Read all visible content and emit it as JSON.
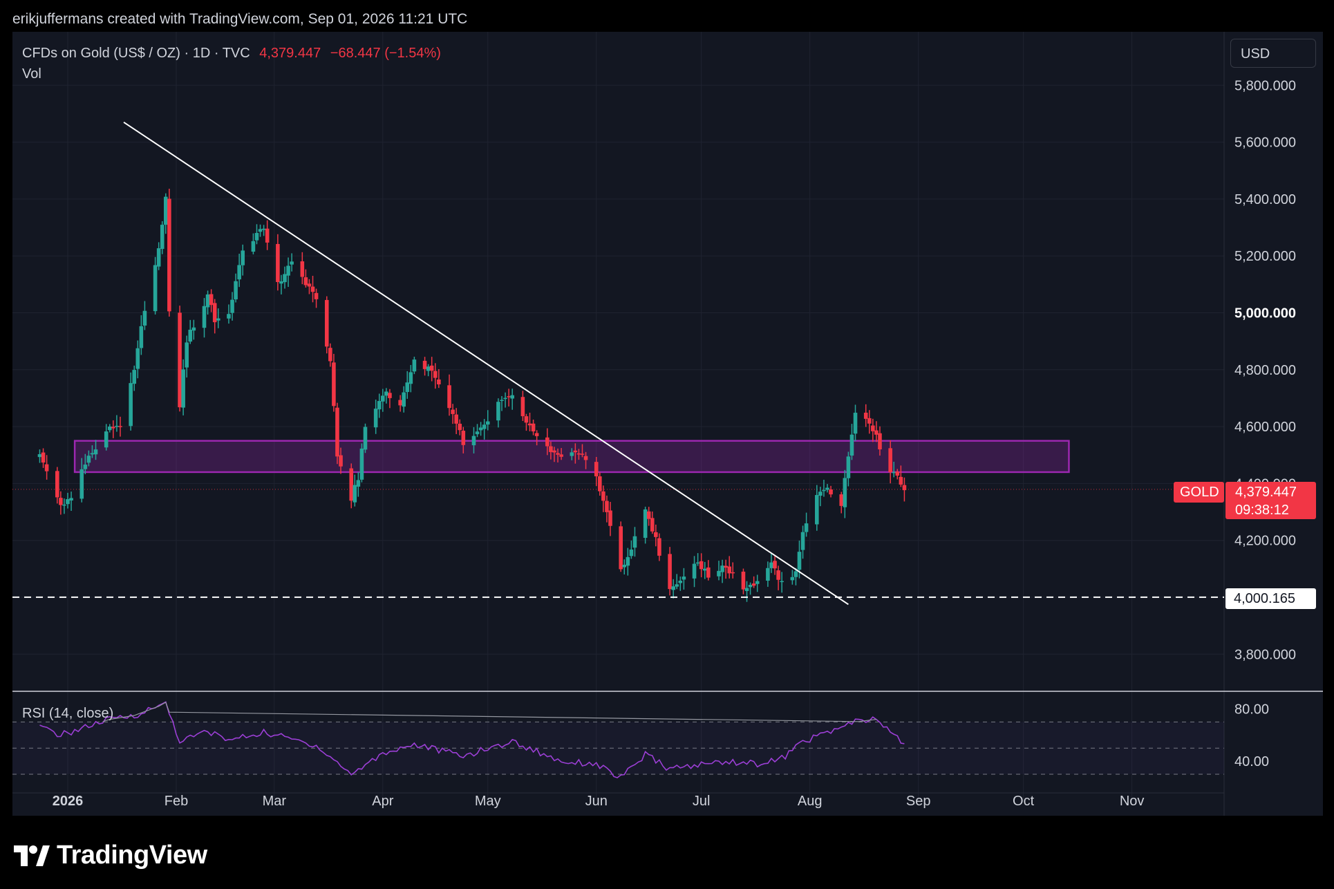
{
  "header": {
    "credit": "erikjuffermans created with TradingView.com, Sep 01, 2026 11:21 UTC"
  },
  "legend": {
    "symbol": "CFDs on Gold (US$ / OZ) · 1D · TVC",
    "price": "4,379.447",
    "change": "−68.447 (−1.54%)",
    "volume": "Vol"
  },
  "currency_button": "USD",
  "rsi": {
    "label": "RSI (14, close)"
  },
  "price_tags": {
    "symbol": "GOLD",
    "last": "4,379.447",
    "countdown": "09:38:12",
    "support": "4,000.165"
  },
  "footer": {
    "brand": "TradingView"
  },
  "colors": {
    "up": "#26a69a",
    "down": "#f23645",
    "zone": "#9c27b0",
    "rsi": "#9c3fd6",
    "trendline": "#ffffff"
  },
  "chart_data": [
    {
      "type": "candlestick",
      "name": "CFDs on Gold (US$ / OZ) · 1D · TVC",
      "x_tick_labels": [
        "2026",
        "Feb",
        "Mar",
        "Apr",
        "May",
        "Jun",
        "Jul",
        "Aug",
        "Sep",
        "Oct",
        "Nov"
      ],
      "y_tick_labels": [
        "3,800.000",
        "4,200.000",
        "4,400.000",
        "4,600.000",
        "4,800.000",
        "5,000.000",
        "5,200.000",
        "5,400.000",
        "5,600.000",
        "5,800.000"
      ],
      "ylim": [
        3700,
        5930
      ],
      "last_price": 4379.447,
      "anchors": [
        {
          "date": "2025-12-24",
          "close": 4500
        },
        {
          "date": "2025-12-30",
          "close": 4330
        },
        {
          "date": "2026-01-02",
          "close": 4340
        },
        {
          "date": "2026-01-06",
          "close": 4470
        },
        {
          "date": "2026-01-09",
          "close": 4520
        },
        {
          "date": "2026-01-13",
          "close": 4590
        },
        {
          "date": "2026-01-16",
          "close": 4610
        },
        {
          "date": "2026-01-20",
          "close": 4810
        },
        {
          "date": "2026-01-23",
          "close": 5010
        },
        {
          "date": "2026-01-27",
          "close": 5220
        },
        {
          "date": "2026-01-29",
          "close": 5410
        },
        {
          "date": "2026-01-30",
          "close": 5000
        },
        {
          "date": "2026-02-02",
          "close": 4680
        },
        {
          "date": "2026-02-04",
          "close": 4900
        },
        {
          "date": "2026-02-06",
          "close": 4960
        },
        {
          "date": "2026-02-10",
          "close": 5060
        },
        {
          "date": "2026-02-12",
          "close": 4970
        },
        {
          "date": "2026-02-16",
          "close": 5000
        },
        {
          "date": "2026-02-20",
          "close": 5230
        },
        {
          "date": "2026-02-26",
          "close": 5300
        },
        {
          "date": "2026-03-02",
          "close": 5100
        },
        {
          "date": "2026-03-06",
          "close": 5170
        },
        {
          "date": "2026-03-10",
          "close": 5110
        },
        {
          "date": "2026-03-13",
          "close": 5050
        },
        {
          "date": "2026-03-17",
          "close": 4820
        },
        {
          "date": "2026-03-19",
          "close": 4500
        },
        {
          "date": "2026-03-23",
          "close": 4350
        },
        {
          "date": "2026-03-25",
          "close": 4420
        },
        {
          "date": "2026-03-27",
          "close": 4600
        },
        {
          "date": "2026-04-01",
          "close": 4720
        },
        {
          "date": "2026-04-06",
          "close": 4680
        },
        {
          "date": "2026-04-10",
          "close": 4830
        },
        {
          "date": "2026-04-15",
          "close": 4800
        },
        {
          "date": "2026-04-21",
          "close": 4650
        },
        {
          "date": "2026-04-24",
          "close": 4540
        },
        {
          "date": "2026-04-28",
          "close": 4570
        },
        {
          "date": "2026-05-04",
          "close": 4680
        },
        {
          "date": "2026-05-08",
          "close": 4700
        },
        {
          "date": "2026-05-13",
          "close": 4600
        },
        {
          "date": "2026-05-18",
          "close": 4520
        },
        {
          "date": "2026-05-22",
          "close": 4500
        },
        {
          "date": "2026-05-27",
          "close": 4510
        },
        {
          "date": "2026-06-01",
          "close": 4420
        },
        {
          "date": "2026-06-04",
          "close": 4300
        },
        {
          "date": "2026-06-08",
          "close": 4100
        },
        {
          "date": "2026-06-11",
          "close": 4180
        },
        {
          "date": "2026-06-15",
          "close": 4320
        },
        {
          "date": "2026-06-18",
          "close": 4200
        },
        {
          "date": "2026-06-22",
          "close": 4020
        },
        {
          "date": "2026-06-26",
          "close": 4060
        },
        {
          "date": "2026-06-30",
          "close": 4120
        },
        {
          "date": "2026-07-03",
          "close": 4080
        },
        {
          "date": "2026-07-08",
          "close": 4110
        },
        {
          "date": "2026-07-13",
          "close": 4030
        },
        {
          "date": "2026-07-17",
          "close": 4050
        },
        {
          "date": "2026-07-21",
          "close": 4120
        },
        {
          "date": "2026-07-24",
          "close": 4050
        },
        {
          "date": "2026-07-28",
          "close": 4080
        },
        {
          "date": "2026-07-30",
          "close": 4230
        },
        {
          "date": "2026-08-03",
          "close": 4350
        },
        {
          "date": "2026-08-06",
          "close": 4380
        },
        {
          "date": "2026-08-10",
          "close": 4330
        },
        {
          "date": "2026-08-12",
          "close": 4500
        },
        {
          "date": "2026-08-14",
          "close": 4640
        },
        {
          "date": "2026-08-18",
          "close": 4620
        },
        {
          "date": "2026-08-20",
          "close": 4560
        },
        {
          "date": "2026-08-24",
          "close": 4440
        },
        {
          "date": "2026-08-26",
          "close": 4420
        },
        {
          "date": "2026-08-28",
          "close": 4379.447
        }
      ],
      "annotations": [
        {
          "kind": "trendline",
          "from": {
            "date": "2026-01-17",
            "price": 5670
          },
          "to": {
            "date": "2026-08-12",
            "price": 3975
          }
        },
        {
          "kind": "zone",
          "from_date": "2026-01-03",
          "to_date": "2026-10-14",
          "low": 4440,
          "high": 4550
        },
        {
          "kind": "horizontal_dashed",
          "price": 4000.165
        },
        {
          "kind": "horizontal_dotted",
          "price": 4379.447
        }
      ]
    },
    {
      "type": "line",
      "name": "RSI (14, close)",
      "y_tick_labels": [
        "40.00",
        "80.00"
      ],
      "ylim": [
        20,
        87
      ],
      "levels": [
        30,
        50,
        70
      ],
      "anchors": [
        {
          "date": "2025-12-24",
          "value": 66
        },
        {
          "date": "2025-12-30",
          "value": 60
        },
        {
          "date": "2026-01-06",
          "value": 66
        },
        {
          "date": "2026-01-13",
          "value": 72
        },
        {
          "date": "2026-01-20",
          "value": 75
        },
        {
          "date": "2026-01-27",
          "value": 82
        },
        {
          "date": "2026-01-29",
          "value": 85
        },
        {
          "date": "2026-02-02",
          "value": 55
        },
        {
          "date": "2026-02-10",
          "value": 63
        },
        {
          "date": "2026-02-16",
          "value": 56
        },
        {
          "date": "2026-02-26",
          "value": 62
        },
        {
          "date": "2026-03-06",
          "value": 57
        },
        {
          "date": "2026-03-13",
          "value": 52
        },
        {
          "date": "2026-03-23",
          "value": 30
        },
        {
          "date": "2026-04-01",
          "value": 46
        },
        {
          "date": "2026-04-10",
          "value": 53
        },
        {
          "date": "2026-04-24",
          "value": 44
        },
        {
          "date": "2026-05-08",
          "value": 55
        },
        {
          "date": "2026-05-22",
          "value": 40
        },
        {
          "date": "2026-06-01",
          "value": 38
        },
        {
          "date": "2026-06-08",
          "value": 27
        },
        {
          "date": "2026-06-15",
          "value": 45
        },
        {
          "date": "2026-06-22",
          "value": 34
        },
        {
          "date": "2026-07-08",
          "value": 40
        },
        {
          "date": "2026-07-17",
          "value": 38
        },
        {
          "date": "2026-07-24",
          "value": 42
        },
        {
          "date": "2026-07-30",
          "value": 55
        },
        {
          "date": "2026-08-06",
          "value": 62
        },
        {
          "date": "2026-08-14",
          "value": 70
        },
        {
          "date": "2026-08-20",
          "value": 72
        },
        {
          "date": "2026-08-26",
          "value": 58
        },
        {
          "date": "2026-08-28",
          "value": 52
        }
      ]
    }
  ]
}
